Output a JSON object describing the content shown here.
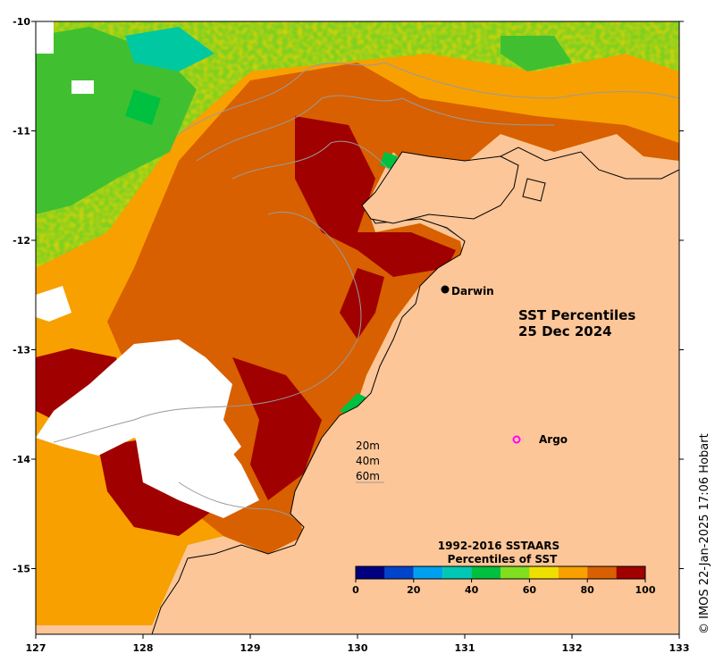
{
  "map": {
    "title_line1": "SST Percentiles",
    "title_line2": "25 Dec 2024",
    "x_ticks": [
      "127",
      "128",
      "129",
      "130",
      "131",
      "132",
      "133"
    ],
    "y_ticks": [
      "-10",
      "-11",
      "-12",
      "-13",
      "-14",
      "-15"
    ],
    "lon_range": [
      127,
      133
    ],
    "lat_range": [
      -10,
      -15.6
    ],
    "places": [
      {
        "label": "Darwin",
        "lon": 130.84,
        "lat": -12.45,
        "marker": "filled-dot",
        "color": "#000000"
      },
      {
        "label": "Argo",
        "lon": 131.53,
        "lat": -14.06,
        "marker": "open-circle",
        "color": "#ff00ff"
      }
    ],
    "depth_contours": [
      "20m",
      "40m",
      "60m"
    ],
    "colors": {
      "land": "#fdc698",
      "no_data": "#ffffff",
      "coastline": "#000000",
      "contour": "#9a9a9a"
    }
  },
  "legend": {
    "title_line1": "1992-2016 SSTAARS",
    "title_line2": "Percentiles of SST",
    "tick_labels": [
      "0",
      "20",
      "40",
      "60",
      "80",
      "100"
    ],
    "colors": [
      "#000080",
      "#0044cc",
      "#00a0f0",
      "#00c8b4",
      "#00c040",
      "#80e020",
      "#f0e000",
      "#f8a000",
      "#d86000",
      "#a00000"
    ]
  },
  "credit": "© IMOS 22-Jan-2025 17:06 Hobart"
}
